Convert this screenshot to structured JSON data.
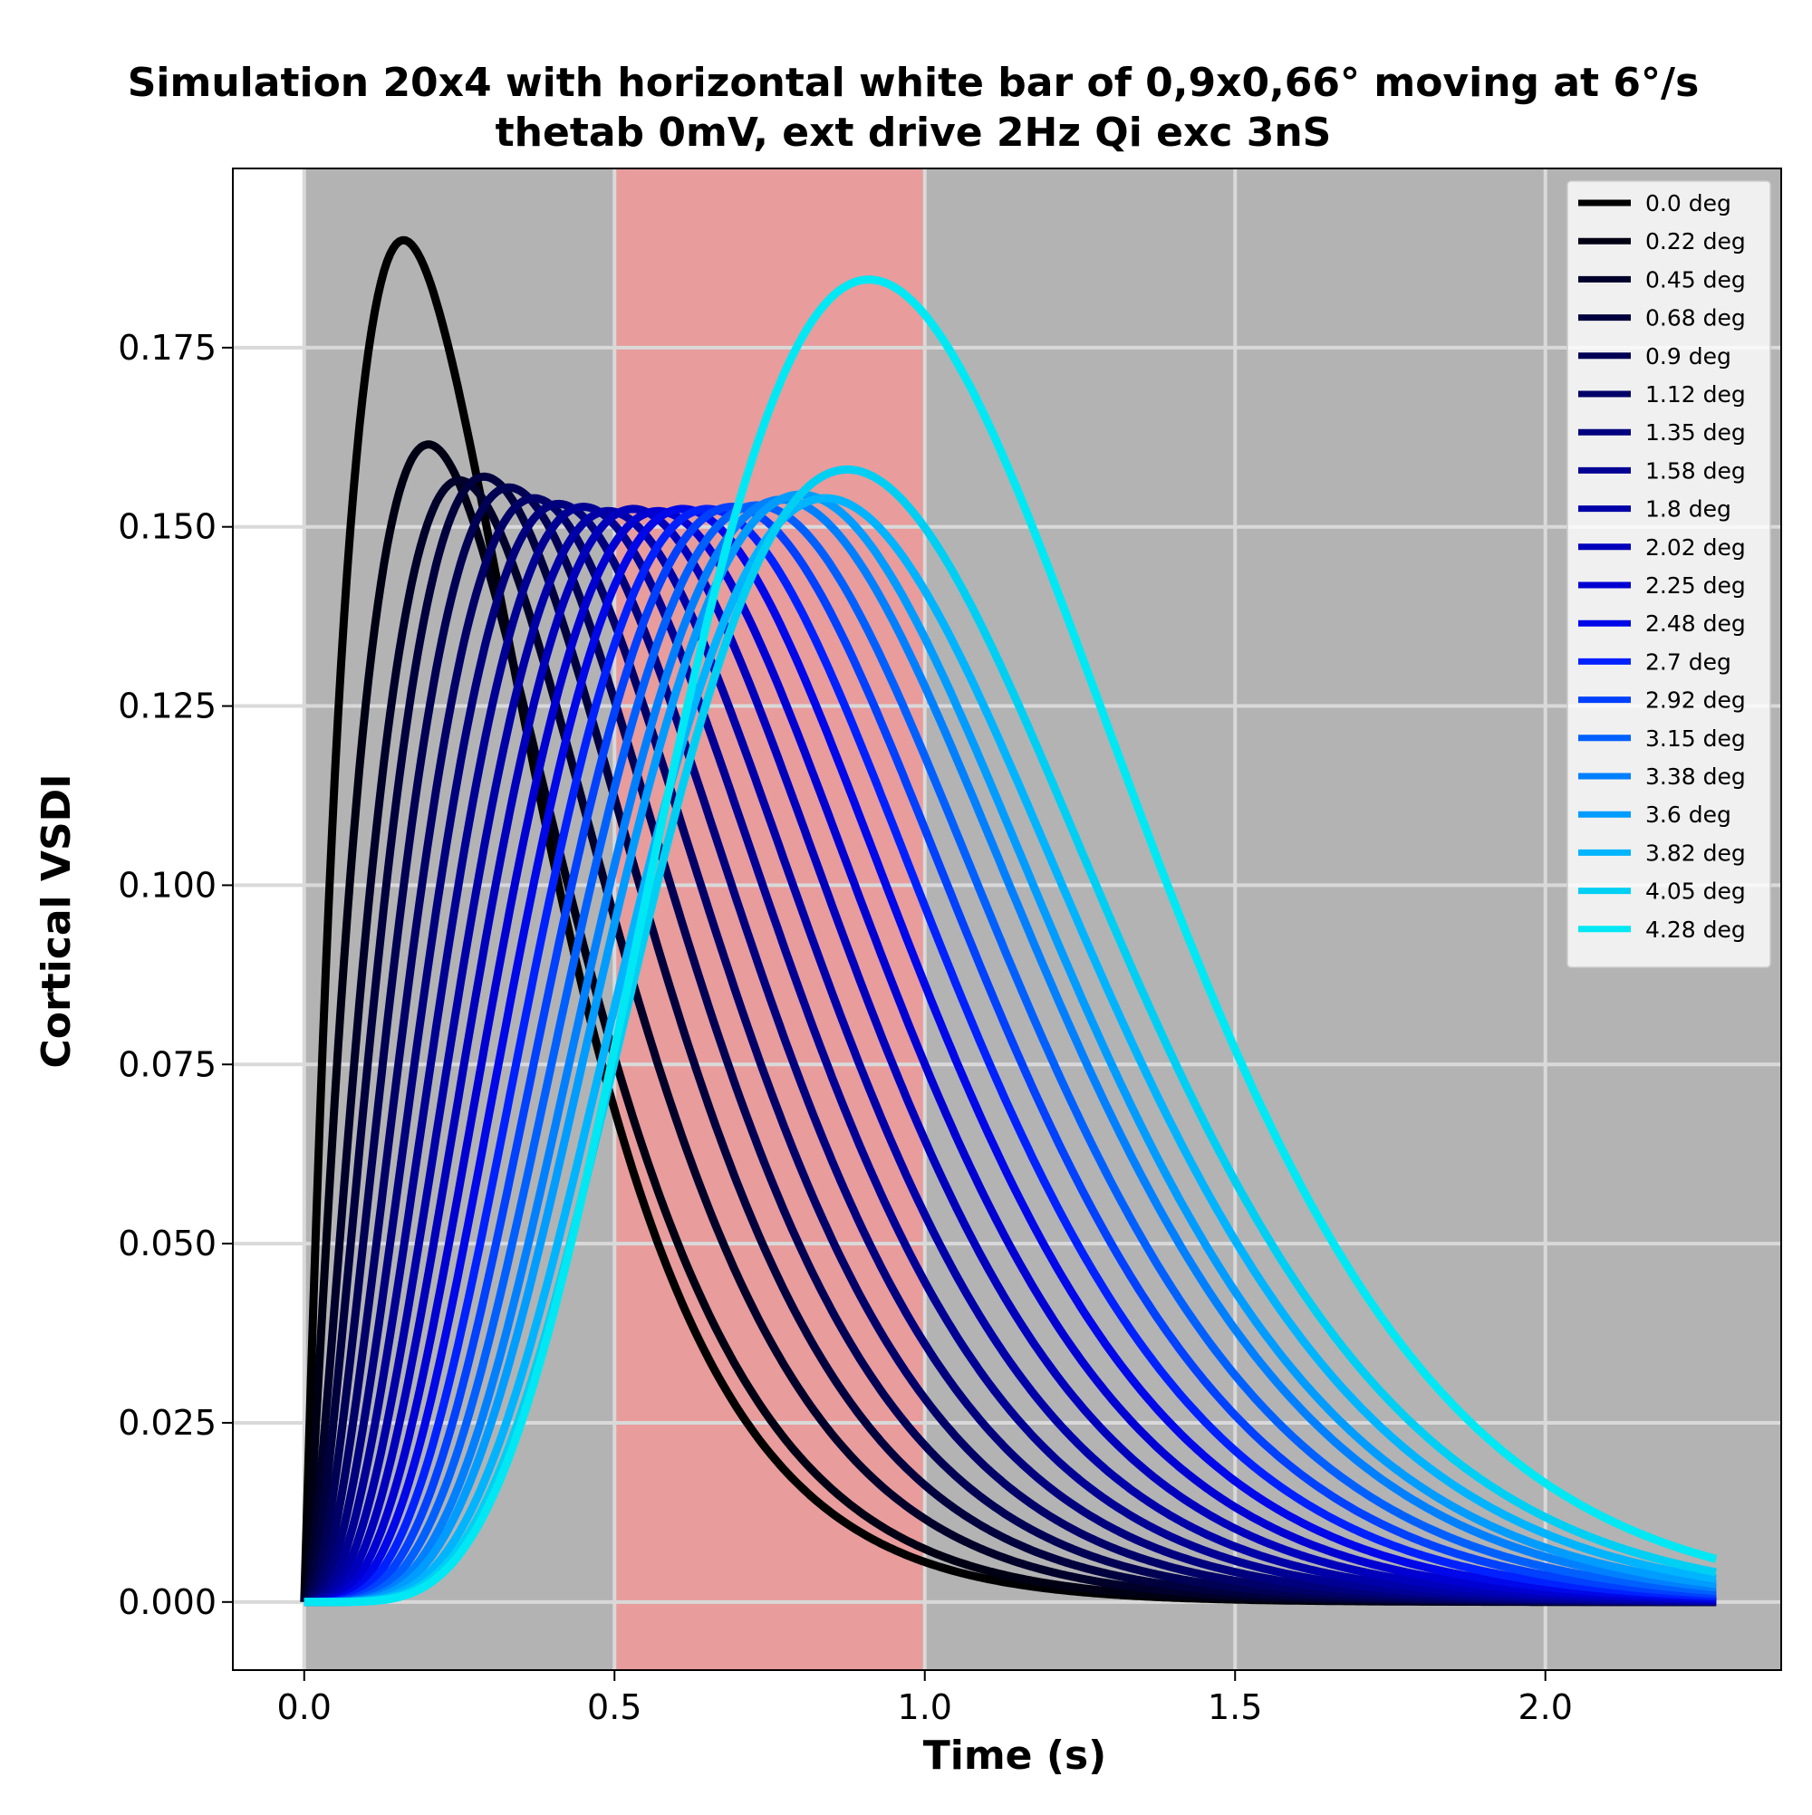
{
  "chart_data": {
    "type": "line",
    "title_line1": "Simulation 20x4 with horizontal white bar of 0,9x0,66° moving at 6°/s",
    "title_line2": "thetab 0mV, ext drive 2Hz Qi exc 3nS",
    "xlabel": "Time (s)",
    "ylabel": "Cortical VSDI",
    "xlim": [
      -0.115,
      2.38
    ],
    "ylim": [
      -0.0095,
      0.2
    ],
    "xticks": [
      "0.0",
      "0.5",
      "1.0",
      "1.5",
      "2.0"
    ],
    "yticks": [
      "0.000",
      "0.025",
      "0.050",
      "0.075",
      "0.100",
      "0.125",
      "0.150",
      "0.175"
    ],
    "grid": true,
    "background_color": "#b3b3b3",
    "grid_color": "#d9d9d9",
    "shaded_region": {
      "x0": 0.5,
      "x1": 1.0,
      "color": "#e89c9c"
    },
    "gray_region_start": 0.0,
    "time_end": 2.275,
    "legend_placement": "top-right",
    "series": [
      {
        "name": "0.0 deg",
        "color": "#000000",
        "peak_time": 0.16,
        "peak_value": 0.19
      },
      {
        "name": "0.22 deg",
        "color": "#000014",
        "peak_time": 0.2,
        "peak_value": 0.1615
      },
      {
        "name": "0.45 deg",
        "color": "#00002a",
        "peak_time": 0.25,
        "peak_value": 0.1565
      },
      {
        "name": "0.68 deg",
        "color": "#00003e",
        "peak_time": 0.29,
        "peak_value": 0.157
      },
      {
        "name": "0.9 deg",
        "color": "#000054",
        "peak_time": 0.33,
        "peak_value": 0.1555
      },
      {
        "name": "1.12 deg",
        "color": "#000068",
        "peak_time": 0.37,
        "peak_value": 0.154
      },
      {
        "name": "1.35 deg",
        "color": "#00007e",
        "peak_time": 0.41,
        "peak_value": 0.1532
      },
      {
        "name": "1.58 deg",
        "color": "#000094",
        "peak_time": 0.45,
        "peak_value": 0.1528
      },
      {
        "name": "1.8 deg",
        "color": "#0000a8",
        "peak_time": 0.49,
        "peak_value": 0.1522
      },
      {
        "name": "2.02 deg",
        "color": "#0000bc",
        "peak_time": 0.53,
        "peak_value": 0.1525
      },
      {
        "name": "2.25 deg",
        "color": "#0000d2",
        "peak_time": 0.57,
        "peak_value": 0.1522
      },
      {
        "name": "2.48 deg",
        "color": "#0007e8",
        "peak_time": 0.61,
        "peak_value": 0.1525
      },
      {
        "name": "2.7 deg",
        "color": "#0021ff",
        "peak_time": 0.65,
        "peak_value": 0.1525
      },
      {
        "name": "2.92 deg",
        "color": "#0040ff",
        "peak_time": 0.69,
        "peak_value": 0.1528
      },
      {
        "name": "3.15 deg",
        "color": "#0060ff",
        "peak_time": 0.73,
        "peak_value": 0.153
      },
      {
        "name": "3.38 deg",
        "color": "#0080ff",
        "peak_time": 0.77,
        "peak_value": 0.1538
      },
      {
        "name": "3.6 deg",
        "color": "#009cff",
        "peak_time": 0.8,
        "peak_value": 0.1545
      },
      {
        "name": "3.82 deg",
        "color": "#00b4ff",
        "peak_time": 0.84,
        "peak_value": 0.154
      },
      {
        "name": "4.05 deg",
        "color": "#00cff4",
        "peak_time": 0.875,
        "peak_value": 0.158
      },
      {
        "name": "4.28 deg",
        "color": "#00e8f4",
        "peak_time": 0.91,
        "peak_value": 0.1845
      }
    ]
  }
}
